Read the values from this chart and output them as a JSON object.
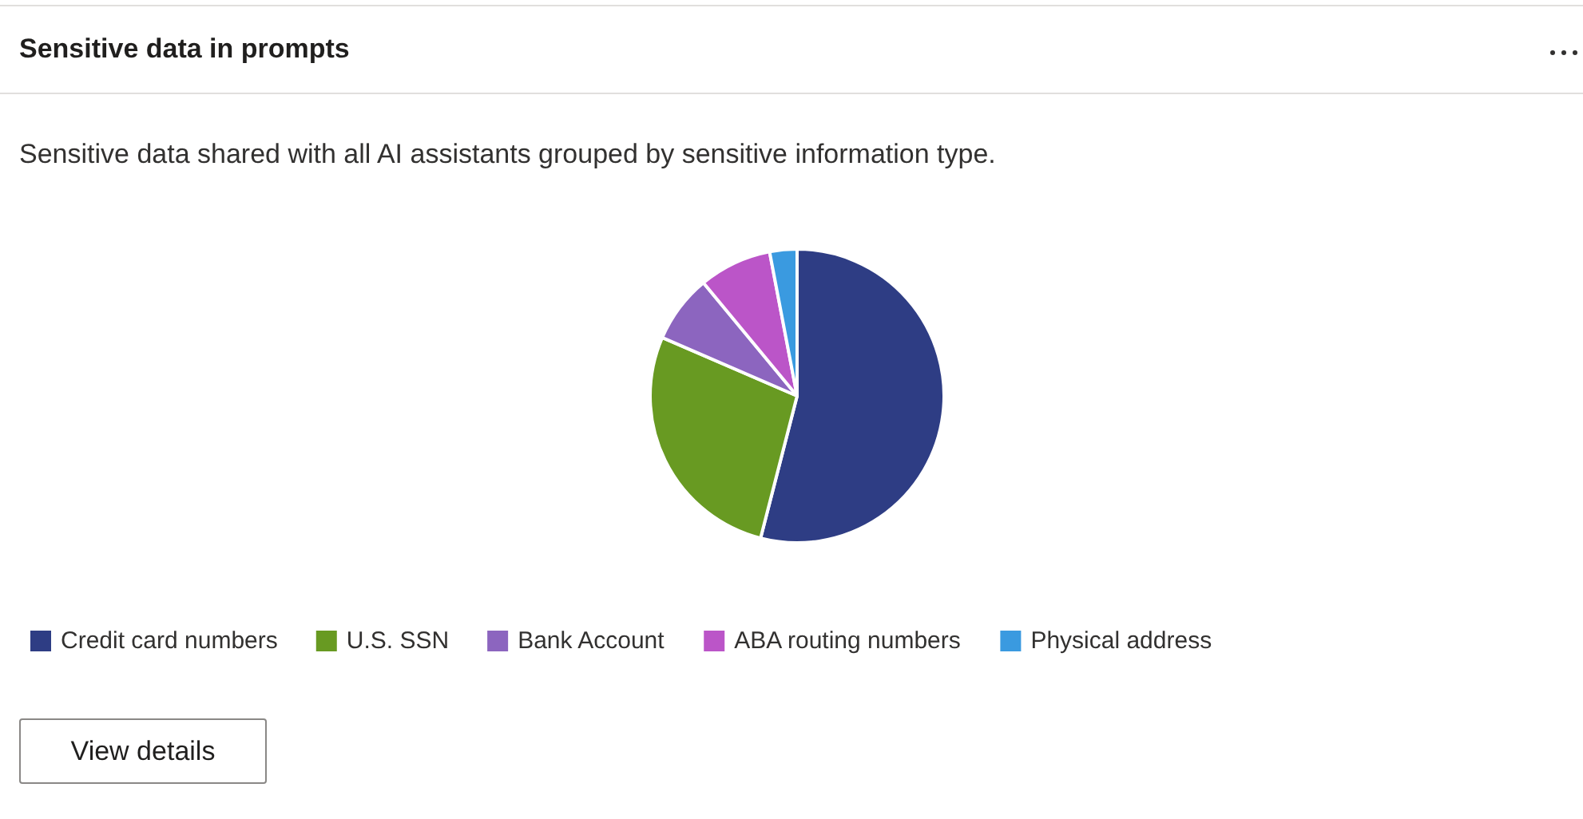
{
  "chart_data": {
    "type": "pie",
    "title": "Sensitive data in prompts",
    "subtitle": "Sensitive data shared with all AI assistants grouped by sensitive information type.",
    "categories": [
      "Credit card numbers",
      "U.S. SSN",
      "Bank Account",
      "ABA routing numbers",
      "Physical address"
    ],
    "values": [
      54,
      27.5,
      7.5,
      8,
      3
    ],
    "colors": [
      "#2e3d84",
      "#689a22",
      "#8c65bf",
      "#bb55c8",
      "#3a9ae0"
    ],
    "legend": "bottom",
    "annotations": [
      "View details"
    ]
  }
}
